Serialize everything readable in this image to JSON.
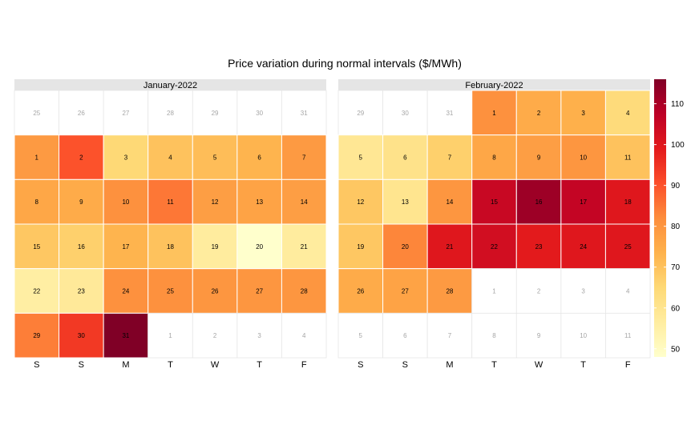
{
  "chart_data": {
    "type": "heatmap",
    "title": "Price variation during normal intervals ($/MWh)",
    "weekdays": [
      "S",
      "S",
      "M",
      "T",
      "W",
      "T",
      "F"
    ],
    "colorbar": {
      "min": 48,
      "max": 116,
      "ticks": [
        50,
        60,
        70,
        80,
        90,
        100,
        110
      ],
      "colors": [
        "#ffffcc",
        "#ffeda0",
        "#fed976",
        "#feb24c",
        "#fd8d3c",
        "#fc4e2a",
        "#e31a1c",
        "#bd0026",
        "#800026"
      ]
    },
    "panels": [
      {
        "label": "January-2022",
        "cells": [
          {
            "day": "25",
            "value": null
          },
          {
            "day": "26",
            "value": null
          },
          {
            "day": "27",
            "value": null
          },
          {
            "day": "28",
            "value": null
          },
          {
            "day": "29",
            "value": null
          },
          {
            "day": "30",
            "value": null
          },
          {
            "day": "31",
            "value": null
          },
          {
            "day": "1",
            "value": 79
          },
          {
            "day": "2",
            "value": 90
          },
          {
            "day": "3",
            "value": 65
          },
          {
            "day": "4",
            "value": 70
          },
          {
            "day": "5",
            "value": 71
          },
          {
            "day": "6",
            "value": 73
          },
          {
            "day": "7",
            "value": 79
          },
          {
            "day": "8",
            "value": 76
          },
          {
            "day": "9",
            "value": 75
          },
          {
            "day": "10",
            "value": 81
          },
          {
            "day": "11",
            "value": 85
          },
          {
            "day": "12",
            "value": 78
          },
          {
            "day": "13",
            "value": 77
          },
          {
            "day": "14",
            "value": 78
          },
          {
            "day": "15",
            "value": 69
          },
          {
            "day": "16",
            "value": 67
          },
          {
            "day": "17",
            "value": 73
          },
          {
            "day": "18",
            "value": 70
          },
          {
            "day": "19",
            "value": 57
          },
          {
            "day": "20",
            "value": 48
          },
          {
            "day": "21",
            "value": 57
          },
          {
            "day": "22",
            "value": 56
          },
          {
            "day": "23",
            "value": 58
          },
          {
            "day": "24",
            "value": 81
          },
          {
            "day": "25",
            "value": 81
          },
          {
            "day": "26",
            "value": 80
          },
          {
            "day": "27",
            "value": 80
          },
          {
            "day": "28",
            "value": 80
          },
          {
            "day": "29",
            "value": 84
          },
          {
            "day": "30",
            "value": 94
          },
          {
            "day": "31",
            "value": 116
          },
          {
            "day": "1",
            "value": null
          },
          {
            "day": "2",
            "value": null
          },
          {
            "day": "3",
            "value": null
          },
          {
            "day": "4",
            "value": null
          }
        ]
      },
      {
        "label": "February-2022",
        "cells": [
          {
            "day": "29",
            "value": null
          },
          {
            "day": "30",
            "value": null
          },
          {
            "day": "31",
            "value": null
          },
          {
            "day": "1",
            "value": 81
          },
          {
            "day": "2",
            "value": 75
          },
          {
            "day": "3",
            "value": 74
          },
          {
            "day": "4",
            "value": 64
          },
          {
            "day": "5",
            "value": 59
          },
          {
            "day": "6",
            "value": 61
          },
          {
            "day": "7",
            "value": 67
          },
          {
            "day": "8",
            "value": 76
          },
          {
            "day": "9",
            "value": 78
          },
          {
            "day": "10",
            "value": 80
          },
          {
            "day": "11",
            "value": 70
          },
          {
            "day": "12",
            "value": 69
          },
          {
            "day": "13",
            "value": 60
          },
          {
            "day": "14",
            "value": 80
          },
          {
            "day": "15",
            "value": 105
          },
          {
            "day": "16",
            "value": 112
          },
          {
            "day": "17",
            "value": 106
          },
          {
            "day": "18",
            "value": 100
          },
          {
            "day": "19",
            "value": 69
          },
          {
            "day": "20",
            "value": 83
          },
          {
            "day": "21",
            "value": 100
          },
          {
            "day": "22",
            "value": 103
          },
          {
            "day": "23",
            "value": 99
          },
          {
            "day": "24",
            "value": 100
          },
          {
            "day": "25",
            "value": 100
          },
          {
            "day": "26",
            "value": 75
          },
          {
            "day": "27",
            "value": 77
          },
          {
            "day": "28",
            "value": 79
          },
          {
            "day": "1",
            "value": null
          },
          {
            "day": "2",
            "value": null
          },
          {
            "day": "3",
            "value": null
          },
          {
            "day": "4",
            "value": null
          },
          {
            "day": "5",
            "value": null
          },
          {
            "day": "6",
            "value": null
          },
          {
            "day": "7",
            "value": null
          },
          {
            "day": "8",
            "value": null
          },
          {
            "day": "9",
            "value": null
          },
          {
            "day": "10",
            "value": null
          },
          {
            "day": "11",
            "value": null
          }
        ]
      }
    ]
  }
}
